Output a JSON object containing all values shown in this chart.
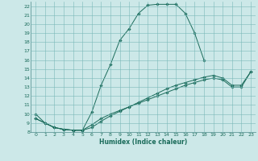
{
  "xlabel": "Humidex (Indice chaleur)",
  "bg_color": "#cce8e8",
  "grid_color": "#7ab8b8",
  "line_color": "#1a6b5a",
  "xlim": [
    -0.5,
    23.5
  ],
  "ylim": [
    8,
    22.5
  ],
  "xticks": [
    0,
    1,
    2,
    3,
    4,
    5,
    6,
    7,
    8,
    9,
    10,
    11,
    12,
    13,
    14,
    15,
    16,
    17,
    18,
    19,
    20,
    21,
    22,
    23
  ],
  "yticks": [
    8,
    9,
    10,
    11,
    12,
    13,
    14,
    15,
    16,
    17,
    18,
    19,
    20,
    21,
    22
  ],
  "curve1_x": [
    0,
    1,
    2,
    3,
    4,
    5,
    6,
    7,
    8,
    9,
    10,
    11,
    12,
    13,
    14,
    15,
    16,
    17,
    18
  ],
  "curve1_y": [
    10,
    9,
    8.5,
    8.3,
    8.2,
    8.2,
    10.2,
    13.2,
    15.5,
    18.2,
    19.5,
    21.2,
    22.1,
    22.2,
    22.2,
    22.2,
    21.2,
    19.0,
    16.0
  ],
  "curve2_x": [
    0,
    1,
    2,
    3,
    4,
    5,
    6,
    7,
    8,
    9,
    10,
    11,
    12,
    13,
    14,
    15,
    16,
    17,
    18,
    19,
    20,
    21,
    22,
    23
  ],
  "curve2_y": [
    9.5,
    9.0,
    8.5,
    8.3,
    8.2,
    8.2,
    8.8,
    9.5,
    10.0,
    10.4,
    10.8,
    11.2,
    11.6,
    12.0,
    12.4,
    12.8,
    13.2,
    13.5,
    13.8,
    14.0,
    13.8,
    13.0,
    13.0,
    14.7
  ],
  "curve3_x": [
    0,
    1,
    2,
    3,
    4,
    5,
    6,
    7,
    8,
    9,
    10,
    11,
    12,
    13,
    14,
    15,
    16,
    17,
    18,
    19,
    20,
    21,
    22,
    23
  ],
  "curve3_y": [
    9.5,
    9.0,
    8.5,
    8.3,
    8.2,
    8.2,
    8.5,
    9.2,
    9.8,
    10.3,
    10.8,
    11.3,
    11.8,
    12.3,
    12.8,
    13.2,
    13.5,
    13.8,
    14.1,
    14.3,
    14.0,
    13.2,
    13.2,
    14.7
  ]
}
